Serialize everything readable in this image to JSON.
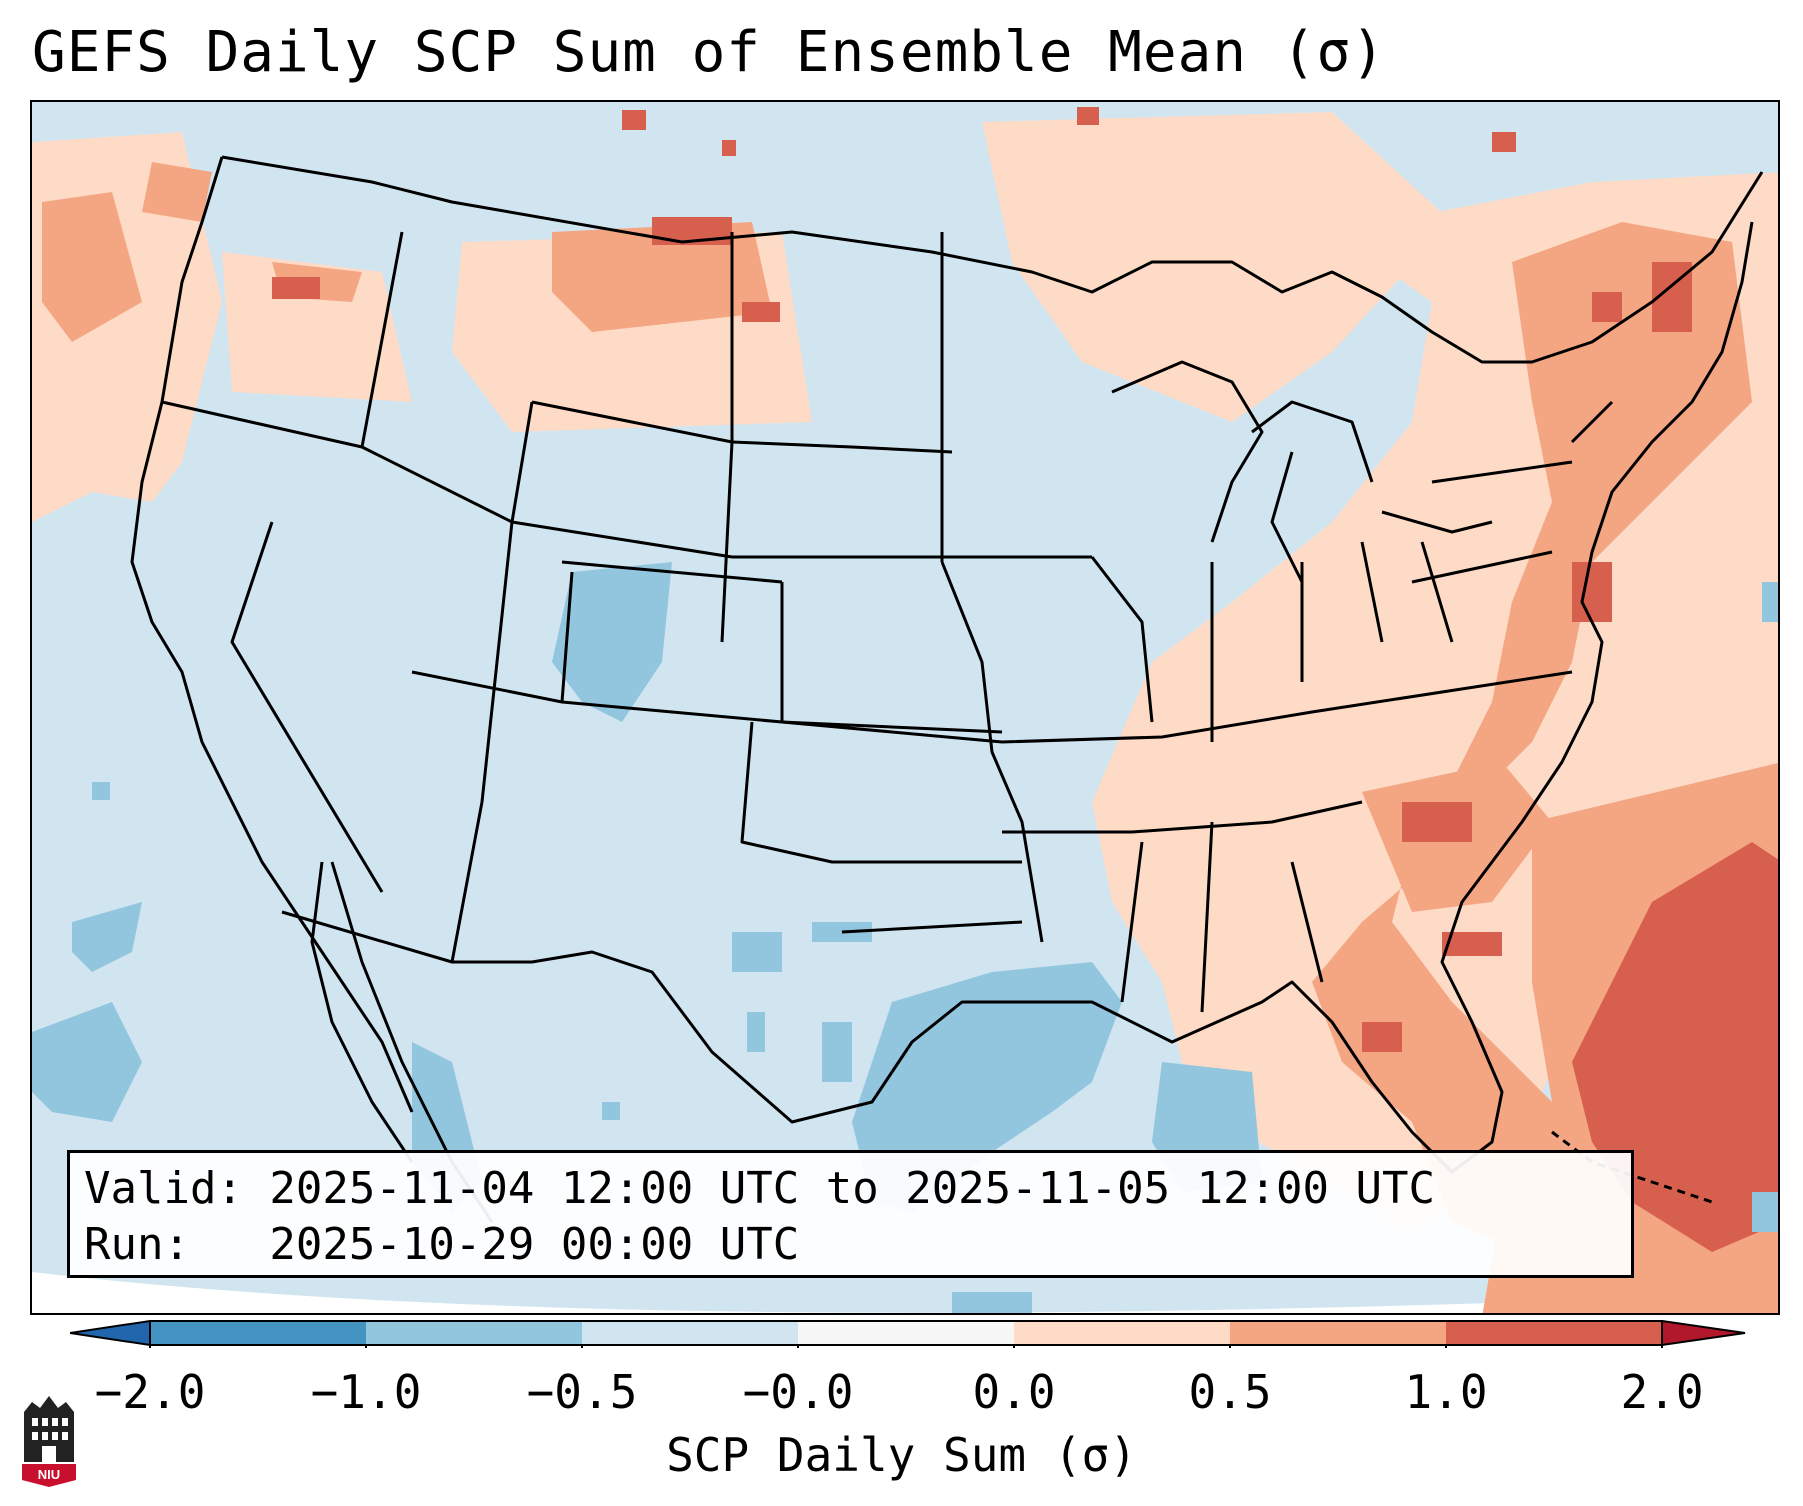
{
  "title": "GEFS Daily SCP Sum of Ensemble Mean (σ)",
  "info": {
    "valid_line": "Valid: 2025-11-04 12:00 UTC to 2025-11-05 12:00 UTC",
    "run_line": "Run:   2025-10-29 00:00 UTC"
  },
  "colorbar": {
    "label": "SCP Daily Sum (σ)",
    "ticks": [
      "−2.0",
      "−1.0",
      "−0.5",
      "−0.0",
      "0.0",
      "0.5",
      "1.0",
      "2.0"
    ],
    "colors": [
      "#4393c3",
      "#92c5de",
      "#d1e5f0",
      "#f7f7f7",
      "#fddbc7",
      "#f4a582",
      "#d6604d"
    ],
    "extend_low_color": "#2166ac",
    "extend_high_color": "#b2182b"
  },
  "map": {
    "projection": "Lambert Conformal - CONUS",
    "field": "SCP Daily Sum standardized anomaly"
  },
  "logo": {
    "text": "NIU"
  }
}
